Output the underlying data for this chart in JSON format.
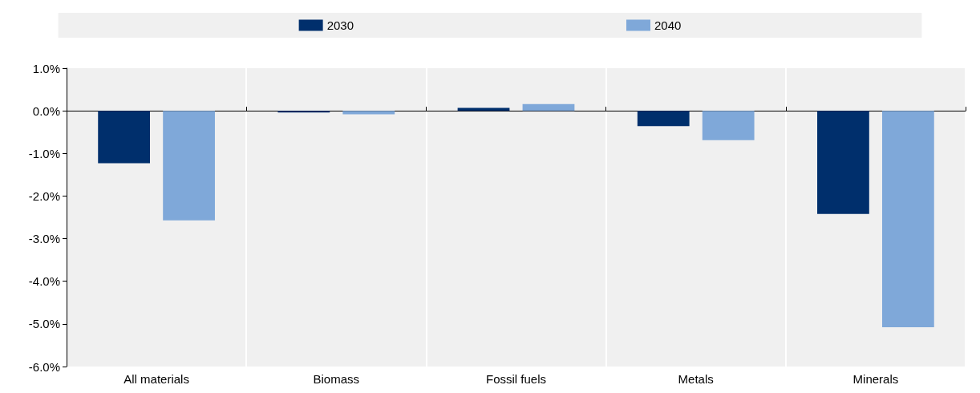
{
  "chart_data": {
    "type": "bar",
    "categories": [
      "All materials",
      "Biomass",
      "Fossil fuels",
      "Metals",
      "Minerals"
    ],
    "series": [
      {
        "name": "2030",
        "color": "#002f6c",
        "values": [
          -1.23,
          -0.04,
          0.07,
          -0.36,
          -2.42
        ]
      },
      {
        "name": "2040",
        "color": "#7fa8d9",
        "values": [
          -2.57,
          -0.08,
          0.16,
          -0.69,
          -5.08
        ]
      }
    ],
    "ylim": [
      -6,
      1
    ],
    "yticks": [
      {
        "value": 1,
        "label": "1.0%"
      },
      {
        "value": 0,
        "label": "0.0%"
      },
      {
        "value": -1,
        "label": "-1.0%"
      },
      {
        "value": -2,
        "label": "-2.0%"
      },
      {
        "value": -3,
        "label": "-3.0%"
      },
      {
        "value": -4,
        "label": "-4.0%"
      },
      {
        "value": -5,
        "label": "-5.0%"
      },
      {
        "value": -6,
        "label": "-6.0%"
      }
    ],
    "grid": "x",
    "legend": "top"
  }
}
